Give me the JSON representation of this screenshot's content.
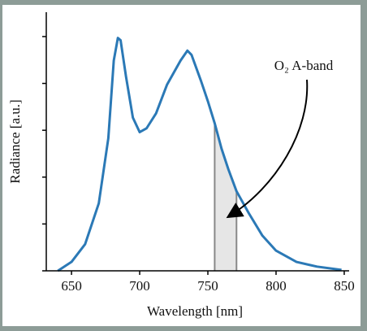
{
  "chart_data": {
    "type": "line",
    "x_label": "Wavelength [nm]",
    "y_label": "Radiance [a.u.]",
    "annotation": "O₂ A-band",
    "band": [
      755,
      771
    ],
    "x": [
      640,
      650,
      660,
      670,
      677,
      681,
      684,
      686,
      690,
      695,
      700,
      705,
      712,
      720,
      730,
      735,
      738,
      745,
      750,
      755,
      760,
      765,
      771,
      780,
      790,
      800,
      815,
      830,
      848
    ],
    "values": [
      0,
      0.19,
      0.57,
      1.44,
      2.83,
      4.49,
      4.97,
      4.92,
      4.14,
      3.27,
      2.96,
      3.04,
      3.36,
      3.97,
      4.49,
      4.7,
      4.61,
      4.05,
      3.62,
      3.15,
      2.61,
      2.17,
      1.7,
      1.23,
      0.75,
      0.43,
      0.19,
      0.09,
      0.02
    ],
    "color": "#2b79b6",
    "band_color": "#e6e6e6",
    "xlim": [
      631.5,
      853.6
    ],
    "xticks": [
      650,
      700,
      750,
      800,
      850
    ],
    "ylim": [
      0,
      5.52
    ],
    "yticks": [
      0,
      1,
      2,
      3,
      4,
      5
    ]
  }
}
